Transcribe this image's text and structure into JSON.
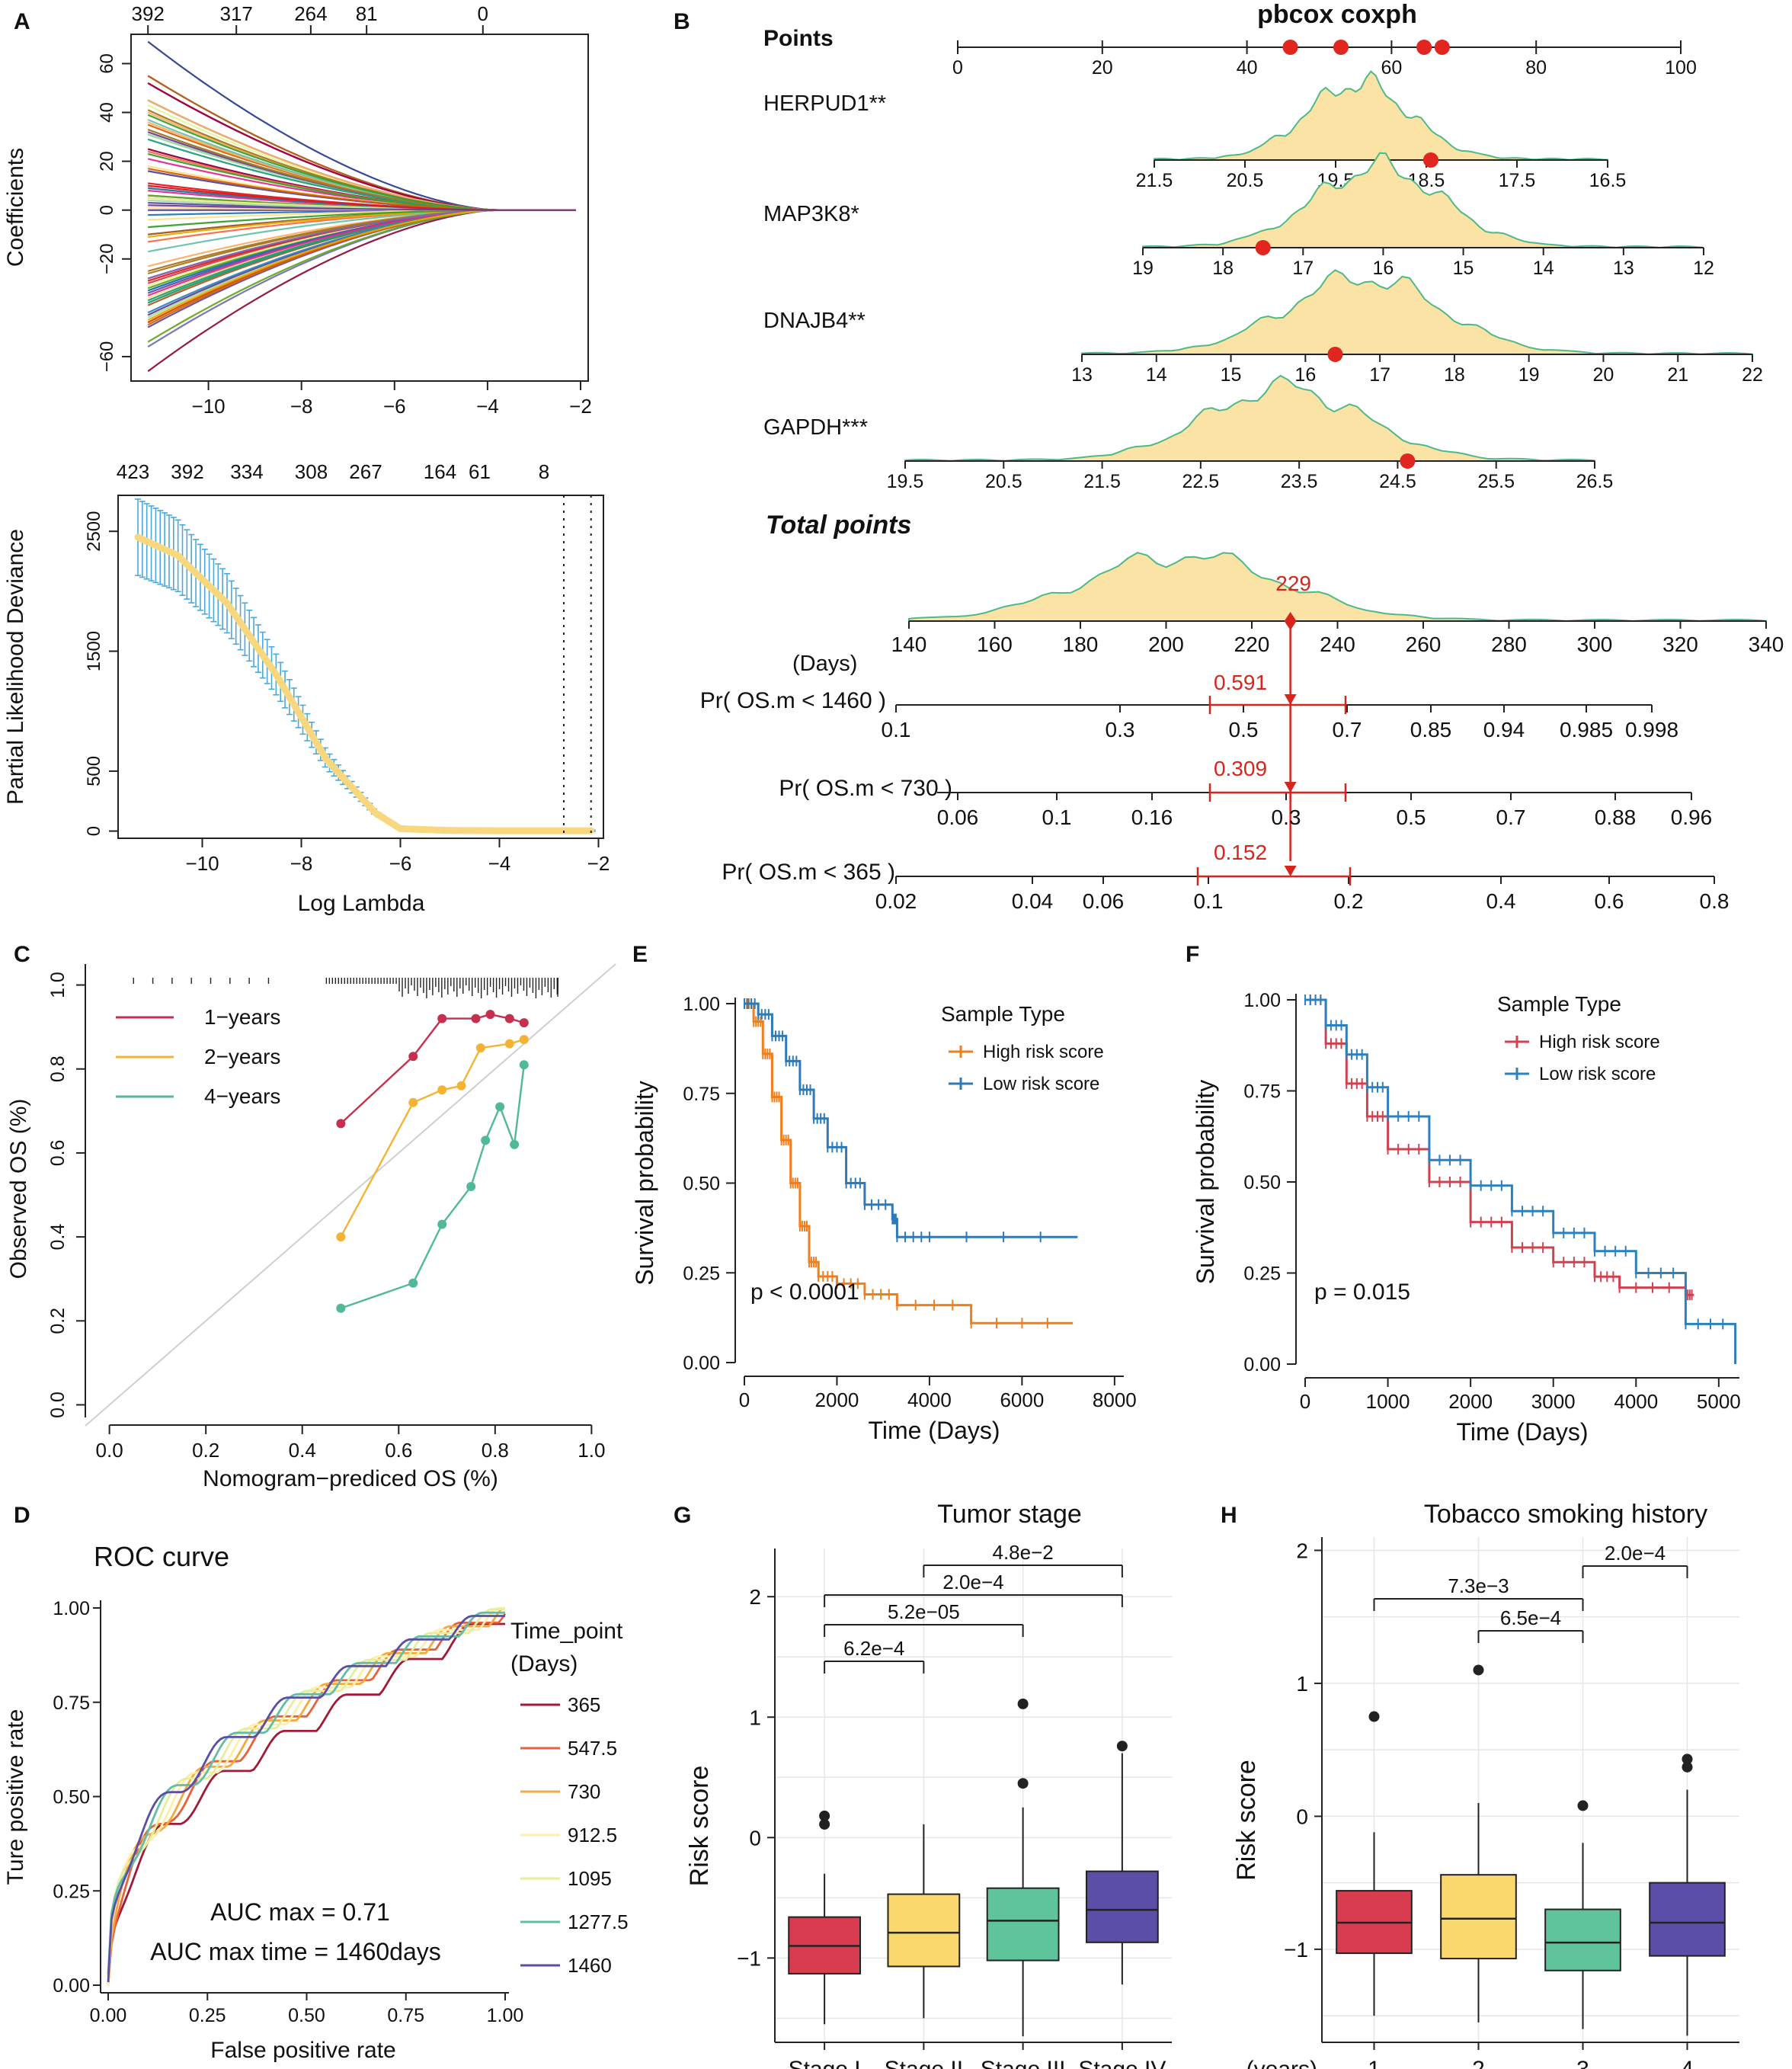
{
  "panel_labels": [
    "A",
    "B",
    "C",
    "D",
    "E",
    "F",
    "G",
    "H"
  ],
  "chart_data": [
    {
      "id": "A1",
      "type": "line",
      "title": "",
      "xlabel": "",
      "ylabel": "Coefficients",
      "xlim": [
        -11.5,
        -2
      ],
      "ylim": [
        -70,
        72
      ],
      "xticks": [
        -10,
        -8,
        -6,
        -4,
        -2
      ],
      "xtick_labels": [
        "−10",
        "−8",
        "−6",
        "−4",
        "−2"
      ],
      "yticks": [
        -60,
        -20,
        0,
        20,
        40,
        60
      ],
      "ytick_labels": [
        "−60",
        "−20",
        "0",
        "20",
        "40",
        "60"
      ],
      "top_axis": {
        "positions": [
          -11.3,
          -9.4,
          -7.8,
          -6.6,
          -4.1
        ],
        "labels": [
          "392",
          "317",
          "264",
          "81",
          "0"
        ]
      },
      "series_note": "coefficient paths shrinking to zero",
      "extreme_paths": [
        69,
        52,
        45,
        40,
        -36,
        -43,
        -66
      ]
    },
    {
      "id": "A2",
      "type": "line",
      "xlabel": "Log Lambda",
      "ylabel": "Partial Likelihood Deviance",
      "xlim": [
        -11.7,
        -1.9
      ],
      "ylim": [
        -60,
        2800
      ],
      "xticks": [
        -10,
        -8,
        -6,
        -4,
        -2
      ],
      "xtick_labels": [
        "−10",
        "−8",
        "−6",
        "−4",
        "−2"
      ],
      "yticks": [
        0,
        500,
        1500,
        2500
      ],
      "ytick_labels": [
        "0",
        "500",
        "1500",
        "2500"
      ],
      "top_axis": {
        "positions": [
          -11.4,
          -10.3,
          -9.1,
          -7.8,
          -6.7,
          -5.2,
          -4.4,
          -3.1
        ],
        "labels": [
          "423",
          "392",
          "334",
          "308",
          "267",
          "164",
          "61",
          "8"
        ]
      },
      "vlines": [
        -2.7,
        -2.15
      ],
      "curve": {
        "x": [
          -11.3,
          -10.5,
          -9.5,
          -8.5,
          -7.5,
          -6.5,
          -6,
          -5,
          -4,
          -3,
          -2.1
        ],
        "y": [
          2450,
          2300,
          1900,
          1300,
          600,
          150,
          20,
          5,
          3,
          3,
          3
        ]
      }
    },
    {
      "id": "B",
      "type": "nomogram",
      "title": "pbcox coxph",
      "points_label": "Points",
      "points_ticks": [
        "0",
        "20",
        "40",
        "60",
        "80",
        "100"
      ],
      "points_markers": [
        46,
        53,
        64.5,
        67
      ],
      "variables": [
        {
          "name": "HERPUD1**",
          "ticks": [
            "21.5",
            "20.5",
            "19.5",
            "18.5",
            "17.5",
            "16.5"
          ],
          "marker_index": 3.05
        },
        {
          "name": "MAP3K8*",
          "ticks": [
            "19",
            "18",
            "17",
            "16",
            "15",
            "14",
            "13",
            "12"
          ],
          "marker_index": 1.5
        },
        {
          "name": "DNAJB4**",
          "ticks": [
            "13",
            "14",
            "15",
            "16",
            "17",
            "18",
            "19",
            "20",
            "21",
            "22"
          ],
          "marker_index": 3.4
        },
        {
          "name": "GAPDH***",
          "ticks": [
            "19.5",
            "20.5",
            "21.5",
            "22.5",
            "23.5",
            "24.5",
            "25.5",
            "26.5"
          ],
          "marker_index": 5.1
        }
      ],
      "total_points_label": "Total points",
      "total_ticks": [
        "140",
        "160",
        "180",
        "200",
        "220",
        "240",
        "260",
        "280",
        "300",
        "320",
        "340"
      ],
      "total_value": 229,
      "total_value_label": "229",
      "days_label": "(Days)",
      "probabilities": [
        {
          "label": "Pr( OS.m < 1460 )",
          "ticks": [
            "0.1",
            "0.3",
            "0.5",
            "0.7",
            "0.85",
            "0.94",
            "0.985",
            "0.998"
          ],
          "value_label": "0.591"
        },
        {
          "label": "Pr( OS.m < 730 )",
          "ticks": [
            "0.06",
            "0.1",
            "0.16",
            "0.3",
            "0.5",
            "0.7",
            "0.88",
            "0.96"
          ],
          "value_label": "0.309"
        },
        {
          "label": "Pr( OS.m < 365 )",
          "ticks": [
            "0.02",
            "0.04",
            "0.06",
            "0.1",
            "0.2",
            "0.4",
            "0.6",
            "0.8"
          ],
          "value_label": "0.152"
        }
      ]
    },
    {
      "id": "C",
      "type": "line",
      "xlabel": "Nomogram−prediced OS (%)",
      "ylabel": "Observed OS (%)",
      "xlim": [
        -0.05,
        1.05
      ],
      "ylim": [
        -0.03,
        1.05
      ],
      "xticks": [
        "0.0",
        "0.2",
        "0.4",
        "0.6",
        "0.8",
        "1.0"
      ],
      "yticks": [
        "0.0",
        "0.2",
        "0.4",
        "0.6",
        "0.8",
        "1.0"
      ],
      "series": [
        {
          "name": "1−years",
          "color": "#c62f4e",
          "x": [
            0.48,
            0.63,
            0.69,
            0.76,
            0.79,
            0.83,
            0.86
          ],
          "y": [
            0.67,
            0.83,
            0.92,
            0.92,
            0.93,
            0.92,
            0.91
          ]
        },
        {
          "name": "2−years",
          "color": "#f5b335",
          "x": [
            0.48,
            0.63,
            0.69,
            0.73,
            0.77,
            0.83,
            0.86
          ],
          "y": [
            0.4,
            0.72,
            0.75,
            0.76,
            0.85,
            0.86,
            0.87
          ]
        },
        {
          "name": "4−years",
          "color": "#52b89a",
          "x": [
            0.48,
            0.63,
            0.69,
            0.75,
            0.78,
            0.81,
            0.84,
            0.86
          ],
          "y": [
            0.23,
            0.29,
            0.43,
            0.52,
            0.63,
            0.71,
            0.62,
            0.81
          ]
        }
      ]
    },
    {
      "id": "D",
      "type": "line",
      "title": "ROC curve",
      "xlabel": "False positive rate",
      "ylabel": "Ture positive rate",
      "xticks": [
        "0.00",
        "0.25",
        "0.50",
        "0.75",
        "1.00"
      ],
      "yticks": [
        "0.00",
        "0.25",
        "0.50",
        "0.75",
        "1.00"
      ],
      "legend_title": [
        "Time_point",
        "(Days)"
      ],
      "series": [
        {
          "name": "365",
          "color": "#a11a36"
        },
        {
          "name": "547.5",
          "color": "#e8613a"
        },
        {
          "name": "730",
          "color": "#f6a93b"
        },
        {
          "name": "912.5",
          "color": "#fcefa6"
        },
        {
          "name": "1095",
          "color": "#e6ee9b"
        },
        {
          "name": "1277.5",
          "color": "#63bda2"
        },
        {
          "name": "1460",
          "color": "#5a4ea5"
        }
      ],
      "annotations": [
        "AUC max = 0.71",
        "AUC max time = 1460days"
      ]
    },
    {
      "id": "E",
      "type": "line",
      "xlabel": "Time (Days)",
      "ylabel": "Survival probability",
      "xticks": [
        "0",
        "2000",
        "4000",
        "6000",
        "8000"
      ],
      "yticks": [
        "0.00",
        "0.25",
        "0.50",
        "0.75",
        "1.00"
      ],
      "legend_title": "Sample Type",
      "series": [
        {
          "name": "High risk score",
          "color": "#f07f1a",
          "x": [
            0,
            200,
            400,
            600,
            800,
            1000,
            1200,
            1400,
            1600,
            2000,
            2600,
            3300,
            4900,
            7100
          ],
          "y": [
            1,
            0.95,
            0.86,
            0.74,
            0.62,
            0.5,
            0.38,
            0.28,
            0.24,
            0.22,
            0.19,
            0.16,
            0.11,
            0.11
          ]
        },
        {
          "name": "Low risk score",
          "color": "#2e7ab8",
          "x": [
            0,
            300,
            600,
            900,
            1200,
            1500,
            1800,
            2200,
            2600,
            3200,
            3300,
            4000,
            7200
          ],
          "y": [
            1,
            0.97,
            0.91,
            0.84,
            0.76,
            0.68,
            0.6,
            0.5,
            0.44,
            0.4,
            0.35,
            0.35,
            0.35
          ]
        }
      ],
      "annotation": "p < 0.0001"
    },
    {
      "id": "F",
      "type": "line",
      "xlabel": "Time (Days)",
      "ylabel": "Survival probability",
      "xticks": [
        "0",
        "1000",
        "2000",
        "3000",
        "4000",
        "5000"
      ],
      "yticks": [
        "0.00",
        "0.25",
        "0.50",
        "0.75",
        "1.00"
      ],
      "legend_title": "Sample Type",
      "series": [
        {
          "name": "High risk score",
          "color": "#d2414f",
          "x": [
            0,
            250,
            500,
            750,
            1000,
            1500,
            2000,
            2500,
            3000,
            3500,
            3800,
            4600,
            4700
          ],
          "y": [
            1,
            0.88,
            0.77,
            0.68,
            0.59,
            0.5,
            0.39,
            0.32,
            0.28,
            0.24,
            0.21,
            0.19,
            0.19
          ]
        },
        {
          "name": "Low risk score",
          "color": "#2c80c0",
          "x": [
            0,
            250,
            500,
            750,
            1000,
            1500,
            2000,
            2500,
            3000,
            3500,
            4000,
            4600,
            5200
          ],
          "y": [
            1,
            0.93,
            0.85,
            0.76,
            0.68,
            0.56,
            0.49,
            0.42,
            0.36,
            0.31,
            0.25,
            0.11,
            0.0
          ]
        }
      ],
      "annotation": "p = 0.015"
    },
    {
      "id": "G",
      "type": "box",
      "title": "Tumor stage",
      "ylabel": "Risk score",
      "ylim": [
        -1.7,
        2.4
      ],
      "yticks": [
        "−1",
        "0",
        "1",
        "2"
      ],
      "categories": [
        "Stage I",
        "Stage II",
        "Stage III",
        "Stage IV"
      ],
      "colors": [
        "#d93c4f",
        "#fbd86e",
        "#5fc39b",
        "#5b4ea6"
      ],
      "boxes": [
        {
          "q1": -1.13,
          "med": -0.9,
          "q3": -0.66,
          "lo": -1.55,
          "hi": -0.3,
          "out": [
            0.18,
            0.11
          ]
        },
        {
          "q1": -1.07,
          "med": -0.79,
          "q3": -0.47,
          "lo": -1.5,
          "hi": 0.11,
          "out": []
        },
        {
          "q1": -1.02,
          "med": -0.69,
          "q3": -0.42,
          "lo": -1.65,
          "hi": 0.25,
          "out": [
            1.11,
            0.45
          ]
        },
        {
          "q1": -0.87,
          "med": -0.6,
          "q3": -0.28,
          "lo": -1.22,
          "hi": 0.7,
          "out": [
            0.76
          ]
        }
      ],
      "comparisons": [
        {
          "from": 0,
          "to": 1,
          "label": "6.2e−4"
        },
        {
          "from": 0,
          "to": 2,
          "label": "5.2e−05"
        },
        {
          "from": 0,
          "to": 3,
          "label": "2.0e−4"
        },
        {
          "from": 1,
          "to": 3,
          "label": "4.8e−2"
        }
      ]
    },
    {
      "id": "H",
      "type": "box",
      "title": "Tobacco smoking history",
      "ylabel": "Risk score",
      "ylim": [
        -1.7,
        2.1
      ],
      "yticks": [
        "−1",
        "0",
        "1",
        "2"
      ],
      "xaxis_prefix": "(years)",
      "categories": [
        "1",
        "2",
        "3",
        "4"
      ],
      "colors": [
        "#d93c4f",
        "#fbd86e",
        "#5fc39b",
        "#5b4ea6"
      ],
      "boxes": [
        {
          "q1": -1.03,
          "med": -0.8,
          "q3": -0.56,
          "lo": -1.5,
          "hi": -0.12,
          "out": [
            0.75
          ]
        },
        {
          "q1": -1.07,
          "med": -0.77,
          "q3": -0.44,
          "lo": -1.55,
          "hi": 0.1,
          "out": [
            1.1
          ]
        },
        {
          "q1": -1.16,
          "med": -0.95,
          "q3": -0.7,
          "lo": -1.6,
          "hi": -0.2,
          "out": [
            0.08
          ]
        },
        {
          "q1": -1.05,
          "med": -0.8,
          "q3": -0.5,
          "lo": -1.65,
          "hi": 0.2,
          "out": [
            0.43,
            0.37
          ]
        }
      ],
      "comparisons": [
        {
          "from": 2,
          "to": 3,
          "label": "2.0e−4"
        },
        {
          "from": 0,
          "to": 2,
          "label": "7.3e−3"
        },
        {
          "from": 1,
          "to": 2,
          "label": "6.5e−4"
        }
      ]
    }
  ]
}
